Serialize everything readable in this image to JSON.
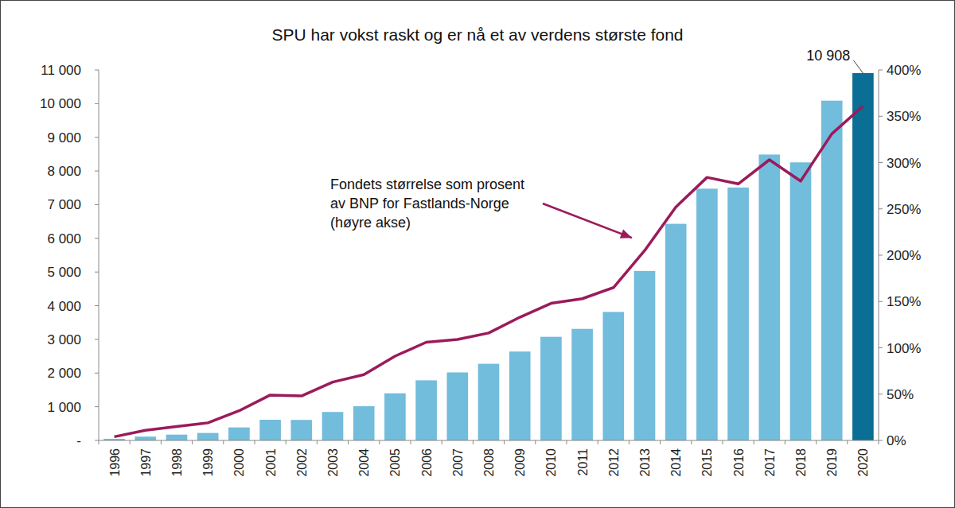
{
  "chart_data": {
    "type": "bar",
    "title": "SPU har vokst raskt og er nå et av verdens største fond",
    "categories": [
      "1996",
      "1997",
      "1998",
      "1999",
      "2000",
      "2001",
      "2002",
      "2003",
      "2004",
      "2005",
      "2006",
      "2007",
      "2008",
      "2009",
      "2010",
      "2011",
      "2012",
      "2013",
      "2014",
      "2015",
      "2016",
      "2017",
      "2018",
      "2019",
      "2020"
    ],
    "series": [
      {
        "type": "bar",
        "colors": [
          "#72bcdc",
          "#72bcdc",
          "#72bcdc",
          "#72bcdc",
          "#72bcdc",
          "#72bcdc",
          "#72bcdc",
          "#72bcdc",
          "#72bcdc",
          "#72bcdc",
          "#72bcdc",
          "#72bcdc",
          "#72bcdc",
          "#72bcdc",
          "#72bcdc",
          "#72bcdc",
          "#72bcdc",
          "#72bcdc",
          "#72bcdc",
          "#72bcdc",
          "#72bcdc",
          "#72bcdc",
          "#72bcdc",
          "#72bcdc",
          "#0a6e95"
        ],
        "values": [
          48,
          113,
          172,
          222,
          386,
          614,
          609,
          845,
          1016,
          1399,
          1784,
          2019,
          2275,
          2640,
          3077,
          3312,
          3816,
          5032,
          6431,
          7475,
          7510,
          8488,
          8256,
          10088,
          10908
        ]
      },
      {
        "type": "line",
        "axis": "y2",
        "color": "#9b1b5a",
        "values": [
          4,
          11,
          15,
          19,
          32,
          49,
          48,
          63,
          71,
          91,
          106,
          109,
          116,
          133,
          148,
          153,
          165,
          205,
          252,
          284,
          277,
          303,
          280,
          331,
          361
        ]
      }
    ],
    "ylim": [
      0,
      11000
    ],
    "yticks": [
      {
        "value": 0,
        "label": "-"
      },
      {
        "value": 1000,
        "label": "1 000"
      },
      {
        "value": 2000,
        "label": "2 000"
      },
      {
        "value": 3000,
        "label": "3 000"
      },
      {
        "value": 4000,
        "label": "4 000"
      },
      {
        "value": 5000,
        "label": "5 000"
      },
      {
        "value": 6000,
        "label": "6 000"
      },
      {
        "value": 7000,
        "label": "7 000"
      },
      {
        "value": 8000,
        "label": "8 000"
      },
      {
        "value": 9000,
        "label": "9 000"
      },
      {
        "value": 10000,
        "label": "10 000"
      },
      {
        "value": 11000,
        "label": "11 000"
      }
    ],
    "y2lim": [
      0,
      400
    ],
    "y2ticks": [
      {
        "value": 0,
        "label": "0%"
      },
      {
        "value": 50,
        "label": "50%"
      },
      {
        "value": 100,
        "label": "100%"
      },
      {
        "value": 150,
        "label": "150%"
      },
      {
        "value": 200,
        "label": "200%"
      },
      {
        "value": 250,
        "label": "250%"
      },
      {
        "value": 300,
        "label": "300%"
      },
      {
        "value": 350,
        "label": "350%"
      },
      {
        "value": 400,
        "label": "400%"
      }
    ],
    "grid": false,
    "annotations": [
      {
        "text": [
          "Fondets størrelse som prosent",
          "av BNP for Fastlands-Norge",
          "(høyre akse)"
        ],
        "x": "2013"
      },
      {
        "text": "10 908",
        "x": "2020"
      }
    ]
  }
}
